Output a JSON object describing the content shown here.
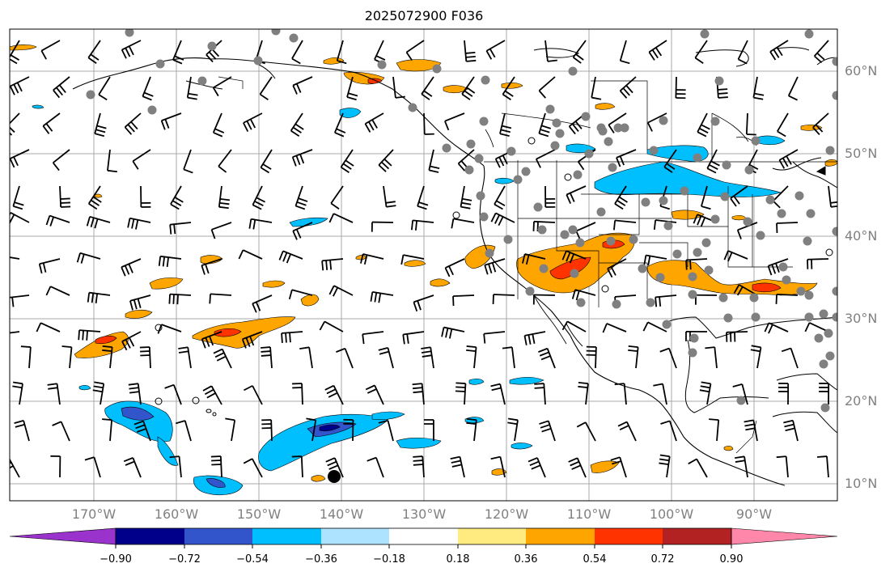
{
  "title": "2025072900 F036",
  "longitude_labels": [
    "170°W",
    "160°W",
    "150°W",
    "140°W",
    "130°W",
    "120°W",
    "110°W",
    "100°W",
    "90°W"
  ],
  "latitude_labels": [
    "60°N",
    "50°N",
    "40°N",
    "30°N",
    "20°N",
    "10°N"
  ],
  "colorbar": {
    "ticks": [
      "−0.90",
      "−0.72",
      "−0.54",
      "−0.36",
      "−0.18",
      "0.18",
      "0.36",
      "0.54",
      "0.72",
      "0.90"
    ],
    "colors": [
      "#9933cc",
      "#00008b",
      "#3355cc",
      "#00bfff",
      "#aee3ff",
      "#ffffff",
      "#ffeb80",
      "#ffa500",
      "#ff3300",
      "#b22222",
      "#ff88aa"
    ]
  },
  "map": {
    "background": "#ffffff",
    "gridline_color": "#aaaaaa",
    "station_marker_color": "#808080",
    "wind_barb_color": "#000000"
  }
}
